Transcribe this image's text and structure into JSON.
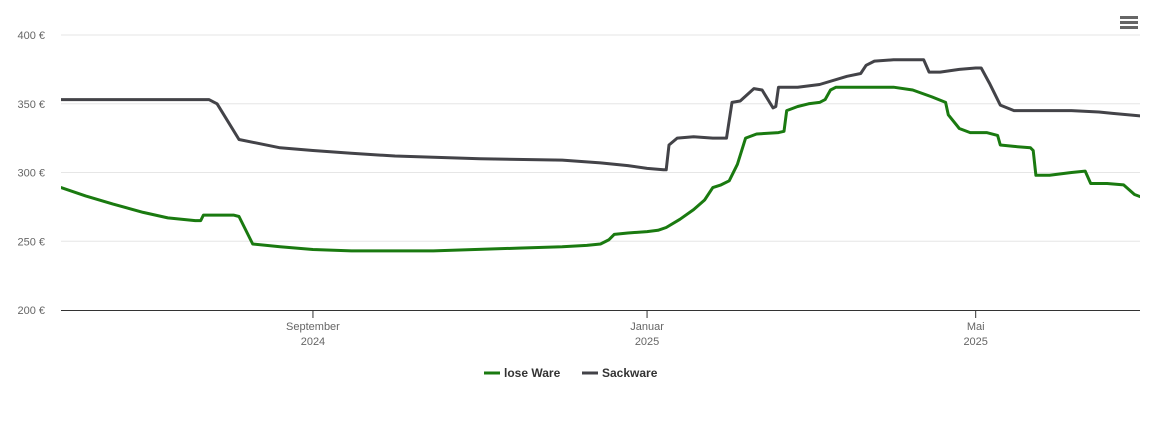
{
  "menu": {
    "icon": "hamburger-menu-icon"
  },
  "chart_data": {
    "type": "line",
    "title": "",
    "xlabel": "",
    "ylabel": "",
    "ylim": [
      200,
      400
    ],
    "yticks": [
      "200 €",
      "250 €",
      "300 €",
      "350 €",
      "400 €"
    ],
    "xlim": [
      "2024-06-01",
      "2025-06-30"
    ],
    "xticks": [
      {
        "date": "2024-09-01",
        "label1": "September",
        "label2": "2024"
      },
      {
        "date": "2025-01-01",
        "label1": "Januar",
        "label2": "2025"
      },
      {
        "date": "2025-05-01",
        "label1": "Mai",
        "label2": "2025"
      }
    ],
    "grid": true,
    "legend_position": "bottom-center",
    "series": [
      {
        "name": "lose Ware",
        "color": "#1a7a10",
        "points": [
          [
            "2024-06-01",
            289
          ],
          [
            "2024-06-10",
            283
          ],
          [
            "2024-06-20",
            277
          ],
          [
            "2024-07-01",
            271
          ],
          [
            "2024-07-10",
            267
          ],
          [
            "2024-07-20",
            265
          ],
          [
            "2024-07-22",
            265
          ],
          [
            "2024-07-23",
            269
          ],
          [
            "2024-08-03",
            269
          ],
          [
            "2024-08-05",
            268
          ],
          [
            "2024-08-10",
            248
          ],
          [
            "2024-08-20",
            246
          ],
          [
            "2024-09-01",
            244
          ],
          [
            "2024-09-15",
            243
          ],
          [
            "2024-10-15",
            243
          ],
          [
            "2024-11-15",
            245
          ],
          [
            "2024-12-01",
            246
          ],
          [
            "2024-12-10",
            247
          ],
          [
            "2024-12-15",
            248
          ],
          [
            "2024-12-18",
            251
          ],
          [
            "2024-12-20",
            255
          ],
          [
            "2024-12-25",
            256
          ],
          [
            "2025-01-01",
            257
          ],
          [
            "2025-01-05",
            258
          ],
          [
            "2025-01-08",
            260
          ],
          [
            "2025-01-13",
            266
          ],
          [
            "2025-01-18",
            273
          ],
          [
            "2025-01-22",
            280
          ],
          [
            "2025-01-25",
            289
          ],
          [
            "2025-01-28",
            291
          ],
          [
            "2025-01-31",
            294
          ],
          [
            "2025-02-03",
            306
          ],
          [
            "2025-02-06",
            325
          ],
          [
            "2025-02-10",
            328
          ],
          [
            "2025-02-18",
            329
          ],
          [
            "2025-02-20",
            330
          ],
          [
            "2025-02-21",
            345
          ],
          [
            "2025-02-25",
            348
          ],
          [
            "2025-03-01",
            350
          ],
          [
            "2025-03-05",
            351
          ],
          [
            "2025-03-07",
            353
          ],
          [
            "2025-03-09",
            360
          ],
          [
            "2025-03-11",
            362
          ],
          [
            "2025-03-20",
            362
          ],
          [
            "2025-04-01",
            362
          ],
          [
            "2025-04-08",
            360
          ],
          [
            "2025-04-15",
            355
          ],
          [
            "2025-04-20",
            351
          ],
          [
            "2025-04-21",
            342
          ],
          [
            "2025-04-25",
            332
          ],
          [
            "2025-04-29",
            329
          ],
          [
            "2025-05-05",
            329
          ],
          [
            "2025-05-09",
            327
          ],
          [
            "2025-05-10",
            320
          ],
          [
            "2025-05-15",
            319
          ],
          [
            "2025-05-21",
            318
          ],
          [
            "2025-05-22",
            316
          ],
          [
            "2025-05-23",
            298
          ],
          [
            "2025-05-28",
            298
          ],
          [
            "2025-06-05",
            300
          ],
          [
            "2025-06-10",
            301
          ],
          [
            "2025-06-12",
            292
          ],
          [
            "2025-06-18",
            292
          ],
          [
            "2025-06-24",
            291
          ],
          [
            "2025-06-28",
            284
          ],
          [
            "2025-07-02",
            281
          ],
          [
            "2025-07-10",
            280
          ],
          [
            "2025-07-20",
            275
          ]
        ]
      },
      {
        "name": "Sackware",
        "color": "#434348",
        "points": [
          [
            "2024-06-01",
            353
          ],
          [
            "2024-07-01",
            353
          ],
          [
            "2024-07-25",
            353
          ],
          [
            "2024-07-28",
            350
          ],
          [
            "2024-08-05",
            324
          ],
          [
            "2024-08-20",
            318
          ],
          [
            "2024-09-01",
            316
          ],
          [
            "2024-09-15",
            314
          ],
          [
            "2024-10-01",
            312
          ],
          [
            "2024-11-01",
            310
          ],
          [
            "2024-12-01",
            309
          ],
          [
            "2024-12-15",
            307
          ],
          [
            "2024-12-25",
            305
          ],
          [
            "2025-01-01",
            303
          ],
          [
            "2025-01-07",
            302
          ],
          [
            "2025-01-08",
            302
          ],
          [
            "2025-01-09",
            320
          ],
          [
            "2025-01-12",
            325
          ],
          [
            "2025-01-18",
            326
          ],
          [
            "2025-01-25",
            325
          ],
          [
            "2025-01-30",
            325
          ],
          [
            "2025-02-01",
            351
          ],
          [
            "2025-02-04",
            352
          ],
          [
            "2025-02-09",
            361
          ],
          [
            "2025-02-12",
            360
          ],
          [
            "2025-02-16",
            347
          ],
          [
            "2025-02-17",
            348
          ],
          [
            "2025-02-18",
            362
          ],
          [
            "2025-02-25",
            362
          ],
          [
            "2025-03-05",
            364
          ],
          [
            "2025-03-15",
            370
          ],
          [
            "2025-03-20",
            372
          ],
          [
            "2025-03-22",
            378
          ],
          [
            "2025-03-25",
            381
          ],
          [
            "2025-04-01",
            382
          ],
          [
            "2025-04-10",
            382
          ],
          [
            "2025-04-12",
            382
          ],
          [
            "2025-04-14",
            373
          ],
          [
            "2025-04-18",
            373
          ],
          [
            "2025-04-25",
            375
          ],
          [
            "2025-05-01",
            376
          ],
          [
            "2025-05-03",
            376
          ],
          [
            "2025-05-06",
            365
          ],
          [
            "2025-05-10",
            349
          ],
          [
            "2025-05-15",
            345
          ],
          [
            "2025-05-25",
            345
          ],
          [
            "2025-06-05",
            345
          ],
          [
            "2025-06-15",
            344
          ],
          [
            "2025-06-20",
            343
          ],
          [
            "2025-07-01",
            341
          ],
          [
            "2025-07-20",
            338
          ]
        ]
      }
    ]
  }
}
